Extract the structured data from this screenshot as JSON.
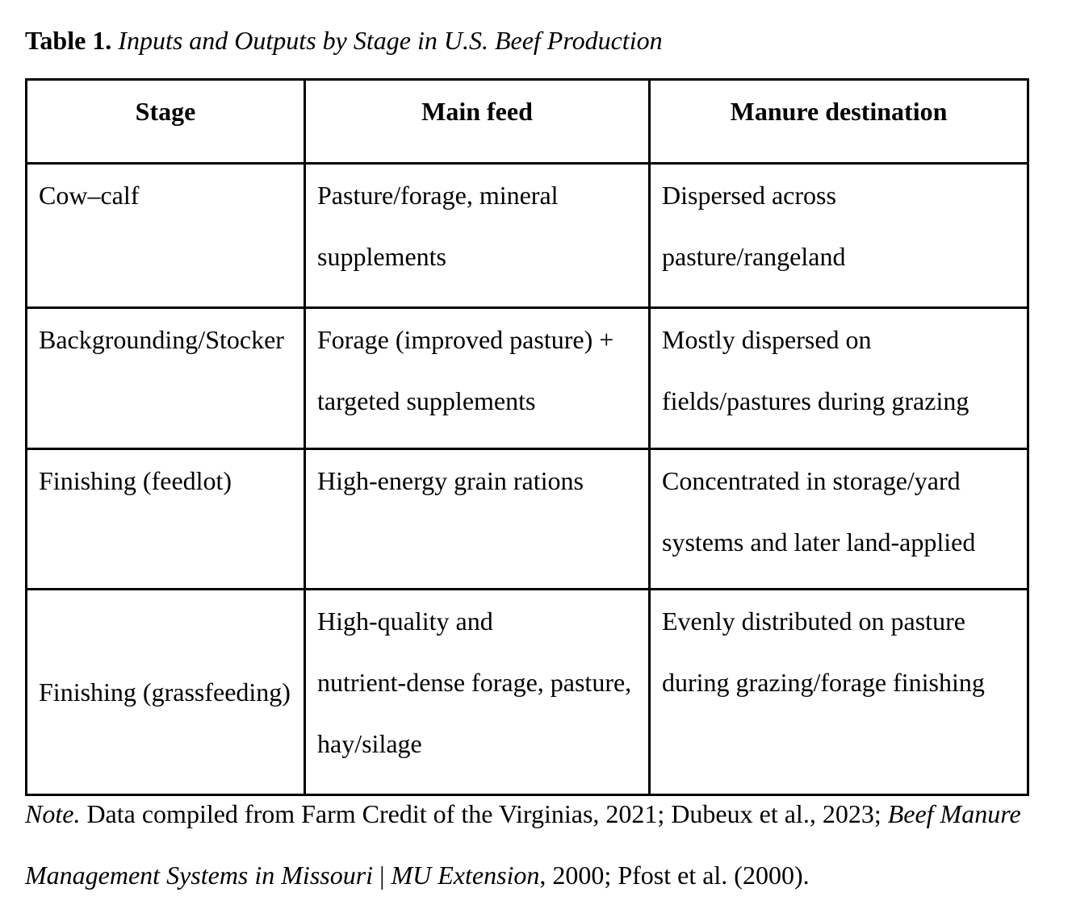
{
  "page": {
    "background": "#ffffff",
    "text_color": "#000000",
    "border_color": "#000000"
  },
  "title": {
    "label": "Table 1.",
    "caption": " Inputs and Outputs by Stage in U.S. Beef Production"
  },
  "table": {
    "headers": [
      "Stage",
      "Main feed",
      "Manure destination"
    ],
    "rows": [
      {
        "stage": [
          "Cow–calf"
        ],
        "feed": [
          "Pasture/forage, mineral",
          "supplements"
        ],
        "manure": [
          "Dispersed across",
          "pasture/rangeland"
        ]
      },
      {
        "stage": [
          "Backgrounding/Stocker"
        ],
        "feed": [
          "Forage (improved pasture) +",
          "targeted supplements"
        ],
        "manure": [
          "Mostly dispersed on",
          "fields/pastures during grazing"
        ]
      },
      {
        "stage": [
          "Finishing (feedlot)"
        ],
        "feed": [
          "High-energy grain rations"
        ],
        "manure": [
          "Concentrated in storage/yard",
          "systems and later land-applied"
        ]
      },
      {
        "stage": [
          "Finishing (grassfeeding)"
        ],
        "feed": [
          "High-quality and",
          "nutrient-dense forage, pasture,",
          "hay/silage"
        ],
        "manure": [
          "Evenly distributed on pasture",
          "during grazing/forage finishing"
        ]
      }
    ]
  },
  "note": {
    "lines": [
      [
        {
          "text": "Note.",
          "italic": true
        },
        {
          "text": " Data compiled from Farm Credit of the Virginias, 2021; Dubeux et al., 2023; ",
          "italic": false
        },
        {
          "text": "Beef Manure",
          "italic": true
        }
      ],
      [
        {
          "text": "Management Systems in Missouri ",
          "italic": true
        },
        {
          "text": "| ",
          "italic": false
        },
        {
          "text": "MU Extension",
          "italic": true
        },
        {
          "text": ", 2000; Pfost et al. (2000).",
          "italic": false
        }
      ]
    ]
  }
}
